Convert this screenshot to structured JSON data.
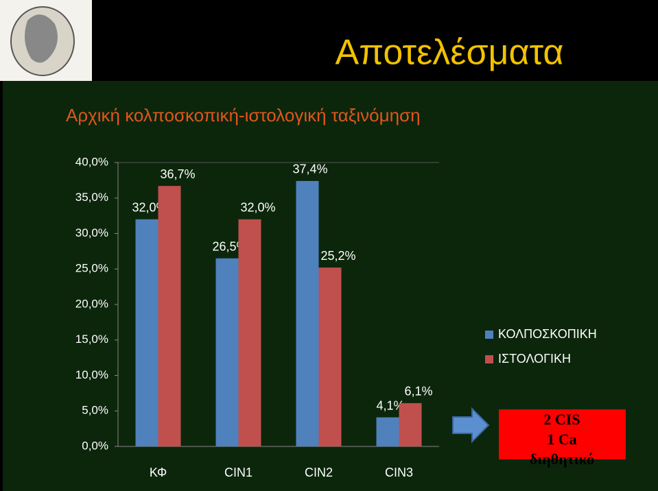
{
  "slide": {
    "title": "Αποτελέσματα",
    "subtitle": "Αρχική κολποσκοπική-ιστολογική ταξινόμηση"
  },
  "chart_data": {
    "type": "bar",
    "categories": [
      "ΚΦ",
      "CIN1",
      "CIN2",
      "CIN3"
    ],
    "series": [
      {
        "name": "ΚΟΛΠΟΣΚΟΠΙΚΗ",
        "color": "#4f81bd",
        "values": [
          32.0,
          26.5,
          37.4,
          4.1
        ],
        "value_labels": [
          "32,0%",
          "26,5%",
          "37,4%",
          "4,1%"
        ]
      },
      {
        "name": "ΙΣΤΟΛΟΓΙΚΗ",
        "color": "#c0504d",
        "values": [
          36.7,
          32.0,
          25.2,
          6.1
        ],
        "value_labels": [
          "36,7%",
          "32,0%",
          "25,2%",
          "6,1%"
        ]
      }
    ],
    "ylim": [
      0,
      40
    ],
    "yticks": [
      {
        "value": 0,
        "label": "0,0%"
      },
      {
        "value": 5,
        "label": "5,0%"
      },
      {
        "value": 10,
        "label": "10,0%"
      },
      {
        "value": 15,
        "label": "15,0%"
      },
      {
        "value": 20,
        "label": "20,0%"
      },
      {
        "value": 25,
        "label": "25,0%"
      },
      {
        "value": 30,
        "label": "30,0%"
      },
      {
        "value": 35,
        "label": "35,0%"
      },
      {
        "value": 40,
        "label": "40,0%"
      }
    ],
    "legend": "right"
  },
  "callout": {
    "lines": [
      "2 CIS",
      "1 Ca",
      "διηθητικό"
    ]
  }
}
